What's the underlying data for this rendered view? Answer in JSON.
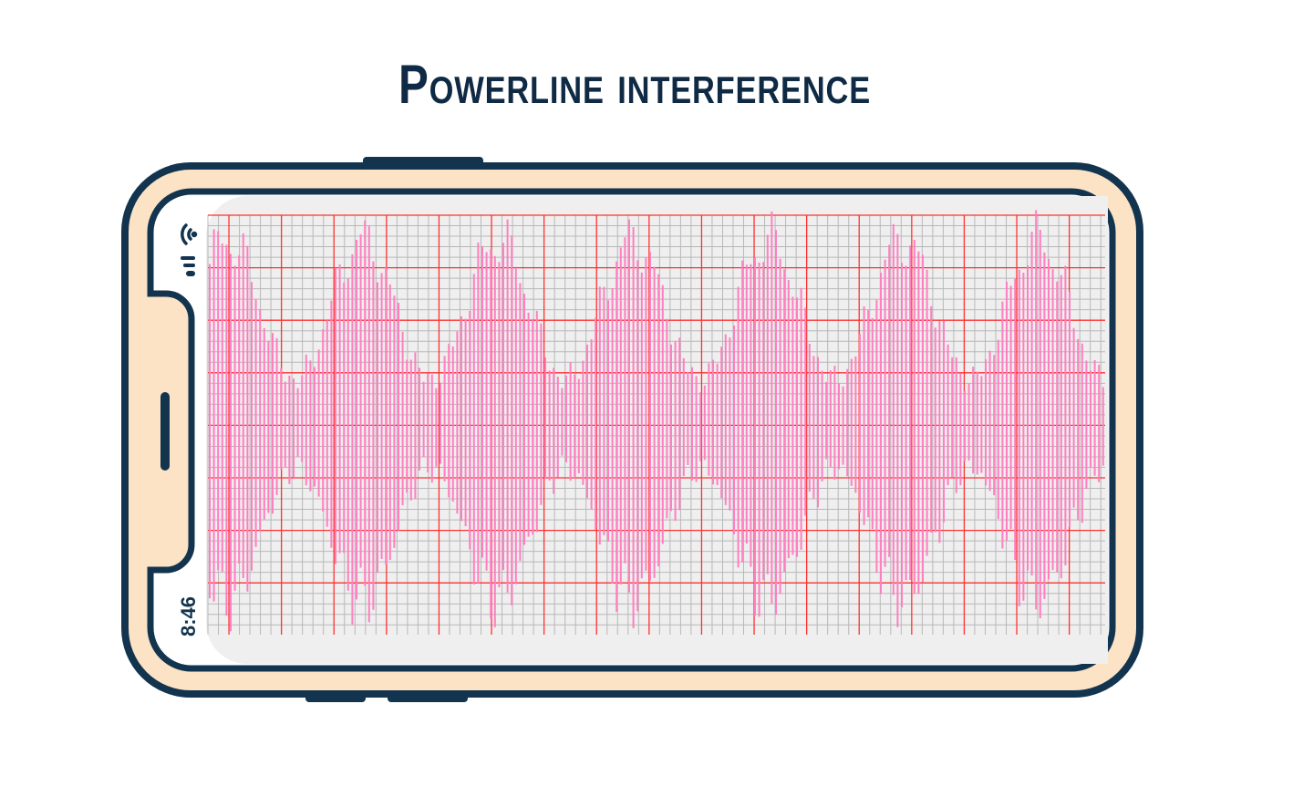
{
  "title": "Powerline interference",
  "status_bar": {
    "time": "8:46",
    "icons": [
      "wifi-icon",
      "signal-icon"
    ]
  },
  "colors": {
    "frame": "#13344f",
    "body": "#fde3c5",
    "screen": "#efefef",
    "grid_major": "#ff3030",
    "grid_minor": "#b8b8b8",
    "trace": "#ff7fc0"
  }
}
